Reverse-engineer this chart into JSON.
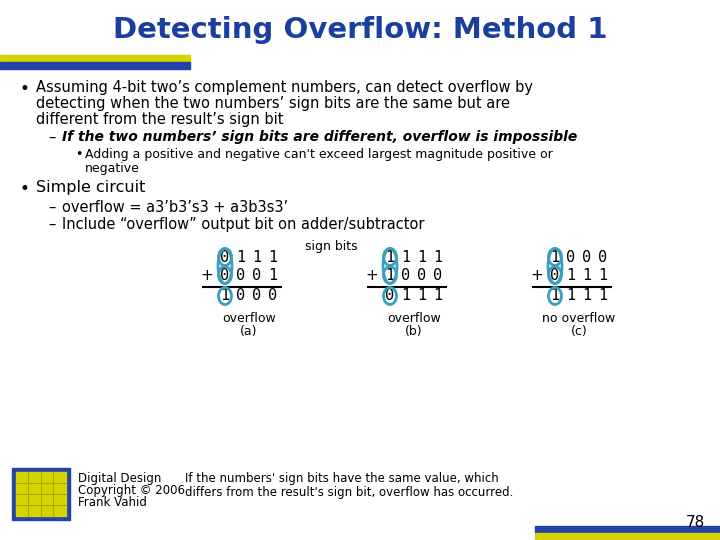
{
  "title": "Detecting Overflow: Method 1",
  "title_color": "#1a3fa0",
  "bg_color": "#ffffff",
  "bullet1_line1": "Assuming 4-bit two’s complement numbers, can detect overflow by",
  "bullet1_line2": "detecting when the two numbers’ sign bits are the same but are",
  "bullet1_line3": "different from the result’s sign bit",
  "sub1": "If the two numbers’ sign bits are different, overflow is impossible",
  "subsub1_line1": "Adding a positive and negative can't exceed largest magnitude positive or",
  "subsub1_line2": "negative",
  "bullet2": "Simple circuit",
  "sub2a": "overflow = a3’b3’s3 + a3b3s3’",
  "sub2b": "Include “overflow” output bit on adder/subtractor",
  "sign_bits_label": "sign bits",
  "cases": [
    {
      "row1": [
        "0",
        "1",
        "1",
        "1"
      ],
      "row2_prefix": "+",
      "row2_val": [
        "0",
        "0",
        "0",
        "1"
      ],
      "row3": [
        "1",
        "0",
        "0",
        "0"
      ],
      "label": "overflow",
      "sublabel": "(a)"
    },
    {
      "row1": [
        "1",
        "1",
        "1",
        "1"
      ],
      "row2_prefix": "+",
      "row2_val": [
        "1",
        "0",
        "0",
        "0"
      ],
      "row3": [
        "0",
        "1",
        "1",
        "1"
      ],
      "label": "overflow",
      "sublabel": "(b)"
    },
    {
      "row1": [
        "1",
        "0",
        "0",
        "0"
      ],
      "row2_prefix": "+",
      "row2_val": [
        "0",
        "1",
        "1",
        "1"
      ],
      "row3": [
        "1",
        "1",
        "1",
        "1"
      ],
      "label": "no overflow",
      "sublabel": "(c)"
    }
  ],
  "footer_left1": "Digital Design",
  "footer_left2": "Copyright © 2006",
  "footer_left3": "Frank Vahid",
  "footer_note1": "If the numbers' sign bits have the same value, which",
  "footer_note2": "differs from the result's sign bit, overflow has occurred.",
  "page_num": "78",
  "circle_color": "#3a9fbf",
  "text_color": "#000000",
  "header_bar_yellow": "#d4d400",
  "header_bar_blue": "#2244aa",
  "footer_bar_yellow": "#d4d400",
  "footer_bar_blue": "#2244aa"
}
